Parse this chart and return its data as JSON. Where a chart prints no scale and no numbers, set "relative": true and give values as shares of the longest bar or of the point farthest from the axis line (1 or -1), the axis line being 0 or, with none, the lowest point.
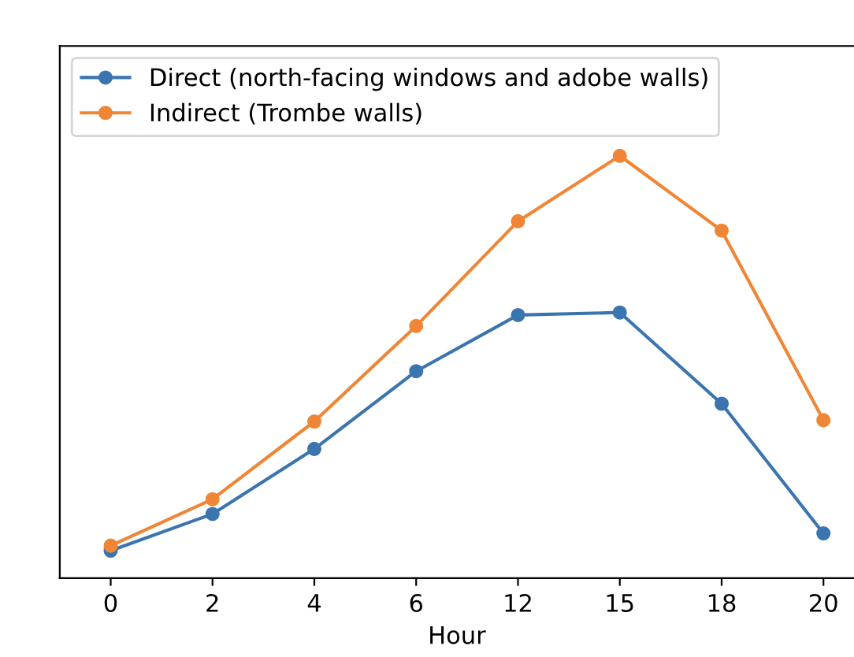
{
  "chart_data": {
    "type": "line",
    "relative": true,
    "xlabel": "Hour",
    "categories": [
      "0",
      "2",
      "4",
      "6",
      "12",
      "15",
      "18",
      "20"
    ],
    "series": [
      {
        "name": "Direct (north-facing windows and adobe walls)",
        "color": "#3b75af",
        "values": [
          0.065,
          0.152,
          0.306,
          0.49,
          0.623,
          0.629,
          0.413,
          0.106
        ]
      },
      {
        "name": "Indirect (Trombe walls)",
        "color": "#ef8636",
        "values": [
          0.077,
          0.187,
          0.371,
          0.597,
          0.845,
          1.0,
          0.823,
          0.374
        ]
      }
    ],
    "marker": "circle",
    "line_style": "solid",
    "legend": "top left",
    "grid": false
  }
}
